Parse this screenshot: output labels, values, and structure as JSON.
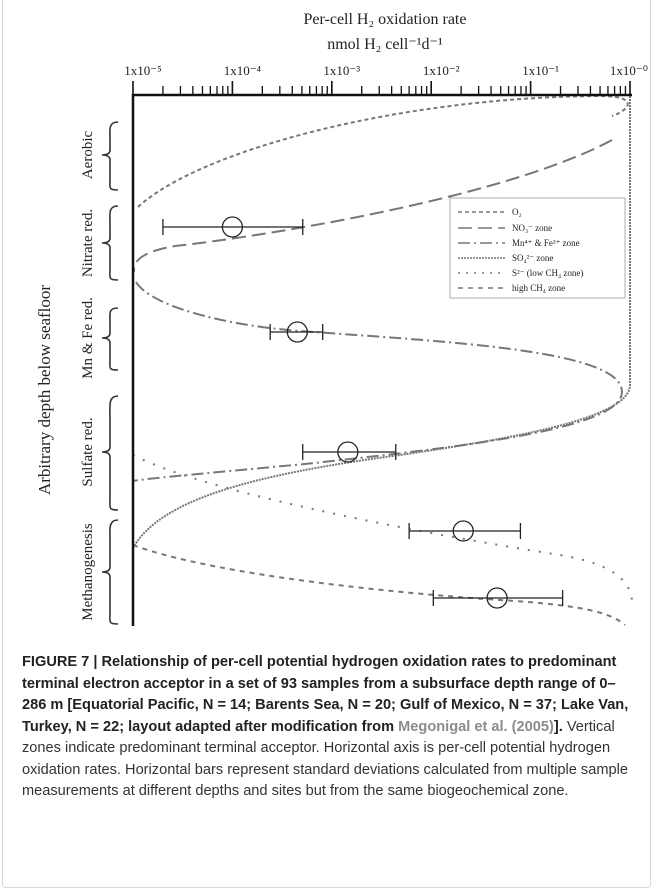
{
  "chart_data": {
    "type": "errorbar",
    "title": "Per-cell H₂ oxidation rate",
    "subtitle": "nmol H₂ cell⁻¹d⁻¹",
    "ylabel": "Arbitrary depth below seafloor",
    "zones": [
      "Aerobic",
      "Nitrate red.",
      "Mn & Fe red.",
      "Sulfate red.",
      "Methanogenesis"
    ],
    "legend": [
      "O₂",
      "NO₃⁻ zone",
      "Mn⁴⁺ & Fe³⁺ zone",
      "SO₄²⁻ zone",
      "S²⁻ (low CH₄ zone)",
      "high CH₄ zone"
    ],
    "log_x": true,
    "xlim": [
      1e-05,
      1
    ],
    "xticks": [
      {
        "value": 1e-05,
        "label": "1x10⁻⁵"
      },
      {
        "value": 0.0001,
        "label": "1x10⁻⁴"
      },
      {
        "value": 0.001,
        "label": "1x10⁻³"
      },
      {
        "value": 0.01,
        "label": "1x10⁻²"
      },
      {
        "value": 0.1,
        "label": "1x10⁻¹"
      },
      {
        "value": 1,
        "label": "1x10⁻⁰"
      }
    ],
    "points": [
      {
        "value": 0.0001,
        "low": 2e-05,
        "high": 0.00051
      },
      {
        "value": 0.00045,
        "low": 0.00024,
        "high": 0.00081
      },
      {
        "value": 0.00145,
        "low": 0.00051,
        "high": 0.0044
      },
      {
        "value": 0.021,
        "low": 0.006,
        "high": 0.079
      },
      {
        "value": 0.046,
        "low": 0.0105,
        "high": 0.21
      }
    ]
  },
  "caption": {
    "label": "FIGURE 7 | ",
    "title": "Relationship of per-cell potential hydrogen oxidation rates to predominant terminal electron acceptor in a set of 93 samples from a subsurface depth range of 0–286 m [Equatorial Pacific, N = 14; Barents Sea, N = 20; Gulf of Mexico, N = 37; Lake Van, Turkey, N = 22; layout adapted after modification from ",
    "link": "Megonigal et al. (2005)",
    "title_end": "].",
    "body": " Vertical zones indicate predominant terminal acceptor. Horizontal axis is per-cell potential hydrogen oxidation rates. Horizontal bars represent standard deviations calculated from multiple sample measurements at different depths and sites but from the same biogeochemical zone."
  }
}
